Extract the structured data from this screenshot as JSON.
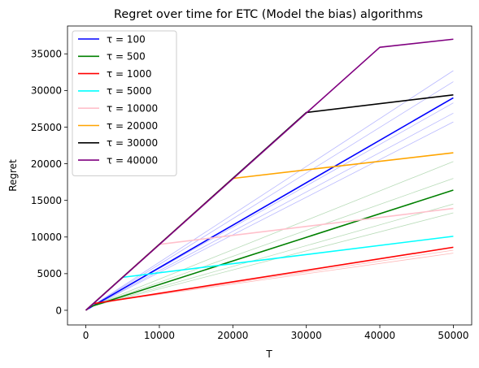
{
  "chart_data": {
    "type": "line",
    "title": "Regret over time for ETC (Model the bias) algorithms",
    "xlabel": "T",
    "ylabel": "Regret",
    "xlim": [
      -2500,
      52500
    ],
    "ylim": [
      -2000,
      38800
    ],
    "xticks": [
      0,
      10000,
      20000,
      30000,
      40000,
      50000
    ],
    "xtick_labels": [
      "0",
      "10000",
      "20000",
      "30000",
      "40000",
      "50000"
    ],
    "yticks": [
      0,
      5000,
      10000,
      15000,
      20000,
      25000,
      30000,
      35000
    ],
    "ytick_labels": [
      "0",
      "5000",
      "10000",
      "15000",
      "20000",
      "25000",
      "30000",
      "35000"
    ],
    "grid": false,
    "legend_position": "upper left",
    "series": [
      {
        "name": "$\\tau = 100$",
        "legend_text": "τ = 100",
        "color": "#0000ff",
        "points": [
          [
            0,
            0
          ],
          [
            100,
            90
          ],
          [
            50000,
            29000
          ]
        ]
      },
      {
        "name": "$\\tau = 500$",
        "legend_text": "τ = 500",
        "color": "#008000",
        "points": [
          [
            0,
            0
          ],
          [
            500,
            450
          ],
          [
            50000,
            16400
          ]
        ]
      },
      {
        "name": "$\\tau = 1000$",
        "legend_text": "τ = 1000",
        "color": "#ff0000",
        "points": [
          [
            0,
            0
          ],
          [
            1000,
            900
          ],
          [
            50000,
            8600
          ]
        ]
      },
      {
        "name": "$\\tau = 5000$",
        "legend_text": "τ = 5000",
        "color": "#00ffff",
        "points": [
          [
            0,
            0
          ],
          [
            5000,
            4500
          ],
          [
            50000,
            10100
          ]
        ]
      },
      {
        "name": "$\\tau = 10000$",
        "legend_text": "τ = 10000",
        "color": "#ffc0cb",
        "points": [
          [
            0,
            0
          ],
          [
            10000,
            9000
          ],
          [
            50000,
            13900
          ]
        ]
      },
      {
        "name": "$\\tau = 20000$",
        "legend_text": "τ = 20000",
        "color": "#ffa500",
        "points": [
          [
            0,
            0
          ],
          [
            20000,
            18000
          ],
          [
            50000,
            21500
          ]
        ]
      },
      {
        "name": "$\\tau = 30000$",
        "legend_text": "τ = 30000",
        "color": "#000000",
        "points": [
          [
            0,
            0
          ],
          [
            30000,
            27000
          ],
          [
            50000,
            29400
          ]
        ]
      },
      {
        "name": "$\\tau = 40000$",
        "legend_text": "τ = 40000",
        "color": "#800080",
        "points": [
          [
            0,
            0
          ],
          [
            40000,
            35900
          ],
          [
            50000,
            37000
          ]
        ]
      }
    ],
    "faint_runs": [
      {
        "color": "#0000ff",
        "points": [
          [
            0,
            0
          ],
          [
            100,
            90
          ],
          [
            50000,
            32700
          ]
        ]
      },
      {
        "color": "#0000ff",
        "points": [
          [
            0,
            0
          ],
          [
            100,
            90
          ],
          [
            50000,
            31200
          ]
        ]
      },
      {
        "color": "#0000ff",
        "points": [
          [
            0,
            0
          ],
          [
            100,
            90
          ],
          [
            50000,
            28300
          ]
        ]
      },
      {
        "color": "#0000ff",
        "points": [
          [
            0,
            0
          ],
          [
            100,
            90
          ],
          [
            50000,
            26900
          ]
        ]
      },
      {
        "color": "#0000ff",
        "points": [
          [
            0,
            0
          ],
          [
            100,
            90
          ],
          [
            50000,
            25700
          ]
        ]
      },
      {
        "color": "#008000",
        "points": [
          [
            0,
            0
          ],
          [
            500,
            450
          ],
          [
            50000,
            20300
          ]
        ]
      },
      {
        "color": "#008000",
        "points": [
          [
            0,
            0
          ],
          [
            500,
            450
          ],
          [
            50000,
            18000
          ]
        ]
      },
      {
        "color": "#008000",
        "points": [
          [
            0,
            0
          ],
          [
            500,
            450
          ],
          [
            50000,
            14500
          ]
        ]
      },
      {
        "color": "#008000",
        "points": [
          [
            0,
            0
          ],
          [
            500,
            450
          ],
          [
            50000,
            13300
          ]
        ]
      },
      {
        "color": "#ff0000",
        "points": [
          [
            0,
            0
          ],
          [
            1000,
            900
          ],
          [
            50000,
            8200
          ]
        ]
      },
      {
        "color": "#ff0000",
        "points": [
          [
            0,
            0
          ],
          [
            1000,
            900
          ],
          [
            50000,
            7800
          ]
        ]
      }
    ]
  }
}
